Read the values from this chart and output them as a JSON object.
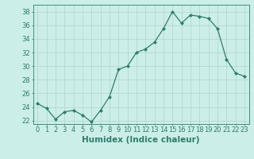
{
  "title": "",
  "xlabel": "Humidex (Indice chaleur)",
  "ylabel": "",
  "x": [
    0,
    1,
    2,
    3,
    4,
    5,
    6,
    7,
    8,
    9,
    10,
    11,
    12,
    13,
    14,
    15,
    16,
    17,
    18,
    19,
    20,
    21,
    22,
    23
  ],
  "y": [
    24.5,
    23.8,
    22.2,
    23.3,
    23.5,
    22.8,
    21.8,
    23.5,
    25.5,
    29.5,
    30.0,
    32.0,
    32.5,
    33.5,
    35.5,
    38.0,
    36.3,
    37.5,
    37.3,
    37.0,
    35.5,
    31.0,
    29.0,
    28.5
  ],
  "line_color": "#2e7d6e",
  "marker": "D",
  "marker_size": 2.0,
  "bg_color": "#cceee8",
  "grid_color": "#b0d4ce",
  "ylim": [
    21.5,
    39.0
  ],
  "xlim": [
    -0.5,
    23.5
  ],
  "yticks": [
    22,
    24,
    26,
    28,
    30,
    32,
    34,
    36,
    38
  ],
  "xticks": [
    0,
    1,
    2,
    3,
    4,
    5,
    6,
    7,
    8,
    9,
    10,
    11,
    12,
    13,
    14,
    15,
    16,
    17,
    18,
    19,
    20,
    21,
    22,
    23
  ],
  "tick_color": "#2e7d6e",
  "axis_color": "#2e7d6e",
  "xlabel_fontsize": 7.5,
  "tick_fontsize": 6.0
}
